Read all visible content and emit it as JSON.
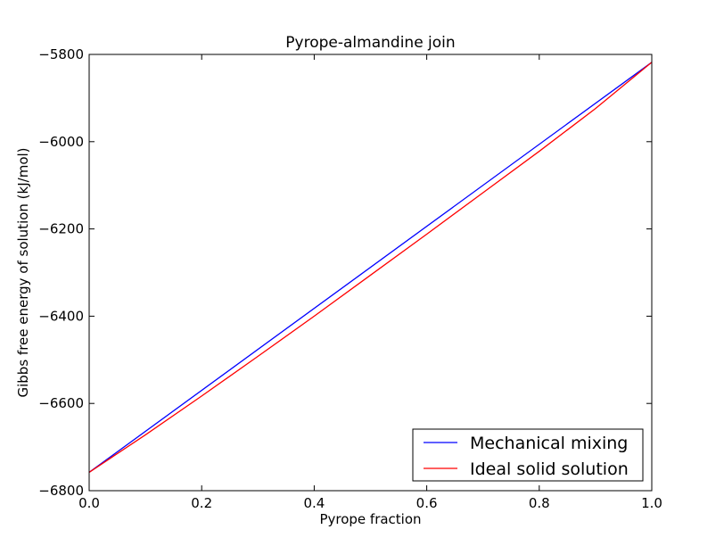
{
  "chart_data": {
    "type": "line",
    "title": "Pyrope-almandine join",
    "xlabel": "Pyrope fraction",
    "ylabel": "Gibbs free energy of solution (kJ/mol)",
    "xlim": [
      0.0,
      1.0
    ],
    "ylim": [
      -6800,
      -5800
    ],
    "xticks": [
      0.0,
      0.2,
      0.4,
      0.6,
      0.8,
      1.0
    ],
    "xtick_labels": [
      "0.0",
      "0.2",
      "0.4",
      "0.6",
      "0.8",
      "1.0"
    ],
    "yticks": [
      -6800,
      -6600,
      -6400,
      -6200,
      -6000,
      -5800
    ],
    "ytick_labels": [
      "−6800",
      "−6600",
      "−6400",
      "−6200",
      "−6000",
      "−5800"
    ],
    "grid": false,
    "legend_position": "lower-right",
    "series": [
      {
        "name": "Mechanical mixing",
        "color": "#0000ff",
        "x": [
          0.0,
          1.0
        ],
        "y": [
          -6758,
          -5818
        ]
      },
      {
        "name": "Ideal solid solution",
        "color": "#ff0000",
        "x": [
          0.0,
          0.1,
          0.2,
          0.3,
          0.4,
          0.5,
          0.6,
          0.7,
          0.8,
          0.9,
          1.0
        ],
        "y": [
          -6758,
          -6672,
          -6583,
          -6492,
          -6400,
          -6306,
          -6212,
          -6117,
          -6022,
          -5924,
          -5818
        ]
      }
    ]
  }
}
